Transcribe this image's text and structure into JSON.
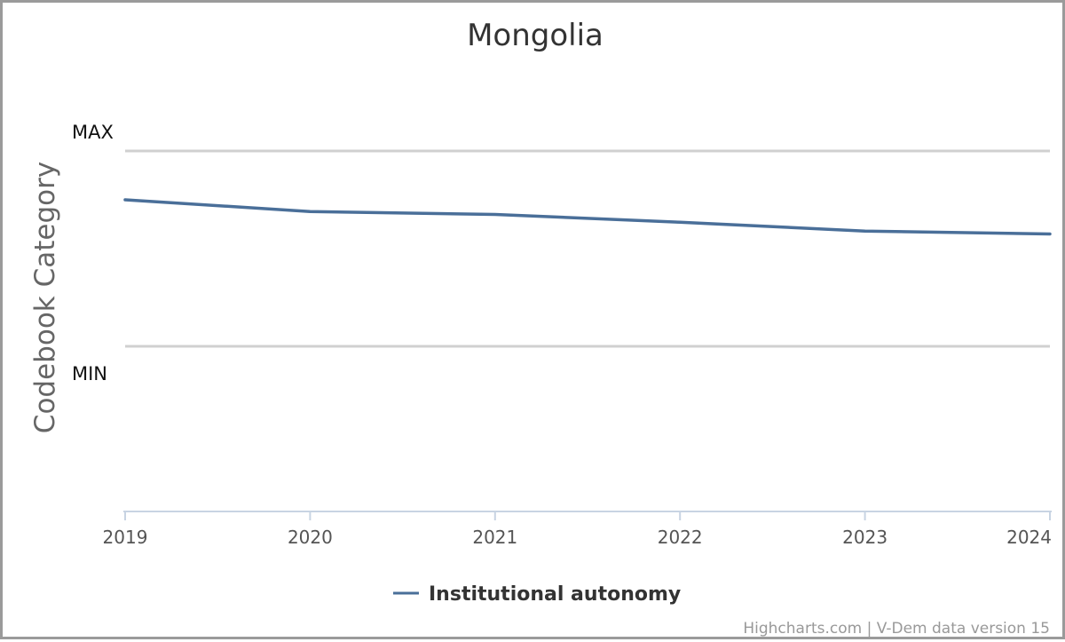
{
  "chart_data": {
    "type": "line",
    "title": "Mongolia",
    "ylabel": "Codebook Category",
    "xlabel": "",
    "y_category_labels": [
      "MAX",
      "MIN"
    ],
    "x": [
      2019,
      2020,
      2021,
      2022,
      2023,
      2024
    ],
    "xlim": [
      2019,
      2024
    ],
    "ylim": [
      0,
      1
    ],
    "grid": true,
    "legend_position": "bottom-center",
    "series": [
      {
        "name": "Institutional autonomy",
        "color": "#4a6f99",
        "values": [
          0.75,
          0.69,
          0.675,
          0.635,
          0.59,
          0.575
        ]
      }
    ]
  },
  "credits": "Highcharts.com | V-Dem data version 15"
}
